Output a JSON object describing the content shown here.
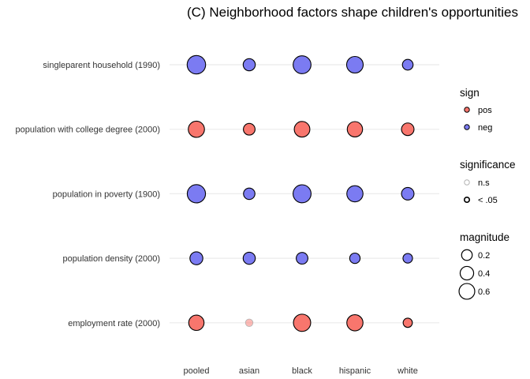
{
  "chart_data": {
    "type": "scatter",
    "title": "(C) Neighborhood factors shape children's opportunities",
    "xlabel": "",
    "ylabel": "",
    "categories": [
      "pooled",
      "asian",
      "black",
      "hispanic",
      "white"
    ],
    "rows": [
      "singleparent household (1990)",
      "population with college degree (2000)",
      "population in poverty (1900)",
      "population density (2000)",
      "employment rate (2000)"
    ],
    "points": [
      {
        "row": "singleparent household (1990)",
        "x": "pooled",
        "magnitude": 0.6,
        "sign": "neg",
        "significance": "< .05"
      },
      {
        "row": "singleparent household (1990)",
        "x": "asian",
        "magnitude": 0.18,
        "sign": "neg",
        "significance": "< .05"
      },
      {
        "row": "singleparent household (1990)",
        "x": "black",
        "magnitude": 0.55,
        "sign": "neg",
        "significance": "< .05"
      },
      {
        "row": "singleparent household (1990)",
        "x": "hispanic",
        "magnitude": 0.45,
        "sign": "neg",
        "significance": "< .05"
      },
      {
        "row": "singleparent household (1990)",
        "x": "white",
        "magnitude": 0.12,
        "sign": "neg",
        "significance": "< .05"
      },
      {
        "row": "population with college degree (2000)",
        "x": "pooled",
        "magnitude": 0.42,
        "sign": "pos",
        "significance": "< .05"
      },
      {
        "row": "population with college degree (2000)",
        "x": "asian",
        "magnitude": 0.16,
        "sign": "pos",
        "significance": "< .05"
      },
      {
        "row": "population with college degree (2000)",
        "x": "black",
        "magnitude": 0.38,
        "sign": "pos",
        "significance": "< .05"
      },
      {
        "row": "population with college degree (2000)",
        "x": "hispanic",
        "magnitude": 0.36,
        "sign": "pos",
        "significance": "< .05"
      },
      {
        "row": "population with college degree (2000)",
        "x": "white",
        "magnitude": 0.2,
        "sign": "pos",
        "significance": "< .05"
      },
      {
        "row": "population in poverty (1900)",
        "x": "pooled",
        "magnitude": 0.58,
        "sign": "neg",
        "significance": "< .05"
      },
      {
        "row": "population in poverty (1900)",
        "x": "asian",
        "magnitude": 0.15,
        "sign": "neg",
        "significance": "< .05"
      },
      {
        "row": "population in poverty (1900)",
        "x": "black",
        "magnitude": 0.56,
        "sign": "neg",
        "significance": "< .05"
      },
      {
        "row": "population in poverty (1900)",
        "x": "hispanic",
        "magnitude": 0.42,
        "sign": "neg",
        "significance": "< .05"
      },
      {
        "row": "population in poverty (1900)",
        "x": "white",
        "magnitude": 0.2,
        "sign": "neg",
        "significance": "< .05"
      },
      {
        "row": "population density (2000)",
        "x": "pooled",
        "magnitude": 0.22,
        "sign": "neg",
        "significance": "< .05"
      },
      {
        "row": "population density (2000)",
        "x": "asian",
        "magnitude": 0.18,
        "sign": "neg",
        "significance": "< .05"
      },
      {
        "row": "population density (2000)",
        "x": "black",
        "magnitude": 0.16,
        "sign": "neg",
        "significance": "< .05"
      },
      {
        "row": "population density (2000)",
        "x": "hispanic",
        "magnitude": 0.11,
        "sign": "neg",
        "significance": "< .05"
      },
      {
        "row": "population density (2000)",
        "x": "white",
        "magnitude": 0.08,
        "sign": "neg",
        "significance": "< .05"
      },
      {
        "row": "employment rate (2000)",
        "x": "pooled",
        "magnitude": 0.36,
        "sign": "pos",
        "significance": "< .05"
      },
      {
        "row": "employment rate (2000)",
        "x": "asian",
        "magnitude": 0.03,
        "sign": "pos",
        "significance": "n.s"
      },
      {
        "row": "employment rate (2000)",
        "x": "black",
        "magnitude": 0.5,
        "sign": "pos",
        "significance": "< .05"
      },
      {
        "row": "employment rate (2000)",
        "x": "hispanic",
        "magnitude": 0.42,
        "sign": "pos",
        "significance": "< .05"
      },
      {
        "row": "employment rate (2000)",
        "x": "white",
        "magnitude": 0.07,
        "sign": "pos",
        "significance": "< .05"
      }
    ],
    "colors": {
      "pos": "#f8766d",
      "neg": "#7b7bf2"
    },
    "grid": true,
    "legend_position": "right",
    "legends": {
      "sign": {
        "title": "sign",
        "entries": [
          "pos",
          "neg"
        ]
      },
      "significance": {
        "title": "significance",
        "entries": [
          "n.s",
          "< .05"
        ]
      },
      "magnitude": {
        "title": "magnitude",
        "entries": [
          0.2,
          0.4,
          0.6
        ]
      }
    }
  }
}
